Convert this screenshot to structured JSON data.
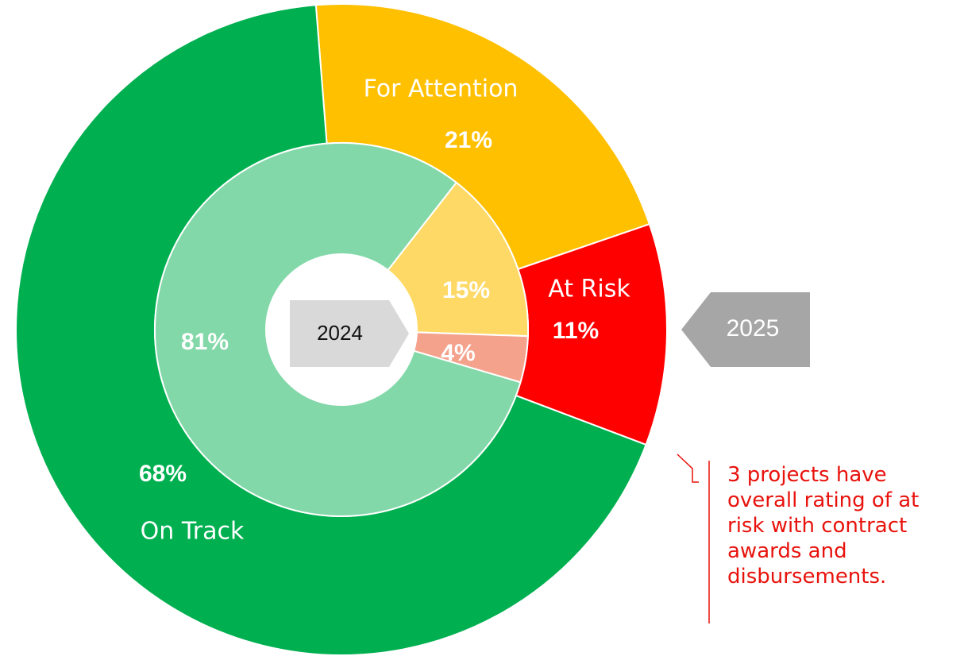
{
  "chart_data": {
    "type": "donut",
    "categories": [
      "On Track",
      "For Attention",
      "At Risk"
    ],
    "series": [
      {
        "name": "2025",
        "values": [
          68,
          21,
          11
        ],
        "value_labels": [
          "68%",
          "21%",
          "11%"
        ],
        "colors": [
          "#00b050",
          "#ffc000",
          "#ff0000"
        ]
      },
      {
        "name": "2024",
        "values": [
          81,
          15,
          4
        ],
        "value_labels": [
          "81%",
          "15%",
          "4%"
        ],
        "colors": [
          "#82d8a8",
          "#ffd966",
          "#f4a28c"
        ]
      }
    ],
    "annotation": "3 projects have overall rating of at risk with contract awards and disbursements."
  }
}
